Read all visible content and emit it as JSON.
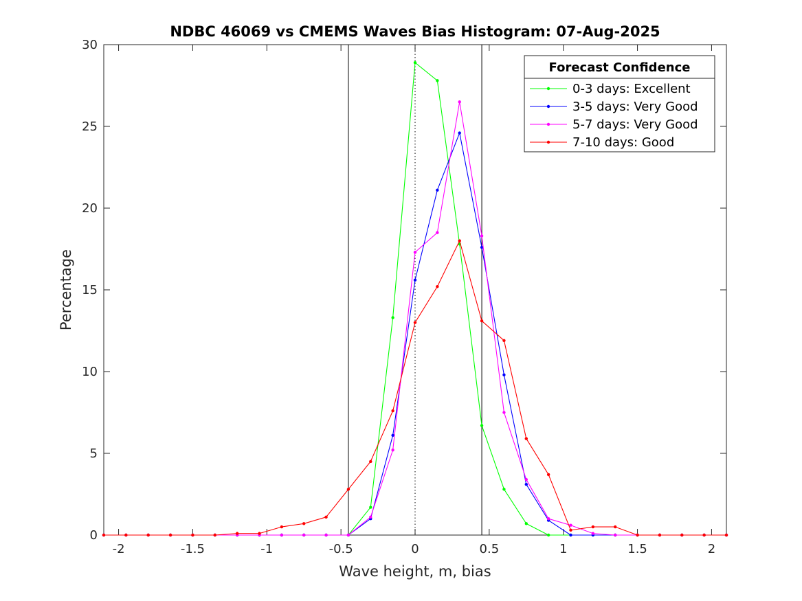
{
  "chart_data": {
    "type": "line",
    "title": "NDBC 46069 vs CMEMS Waves Bias Histogram: 07-Aug-2025",
    "xlabel": "Wave height, m, bias",
    "ylabel": "Percentage",
    "xlim": [
      -2.1,
      2.1
    ],
    "ylim": [
      0,
      30
    ],
    "xticks": [
      -2,
      -1.5,
      -1,
      -0.5,
      0,
      0.5,
      1,
      1.5,
      2
    ],
    "xtick_labels": [
      "-2",
      "-1.5",
      "-1",
      "-0.5",
      "0",
      "0.5",
      "1",
      "1.5",
      "2"
    ],
    "yticks": [
      0,
      5,
      10,
      15,
      20,
      25,
      30
    ],
    "ytick_labels": [
      "0",
      "5",
      "10",
      "15",
      "20",
      "25",
      "30"
    ],
    "grid": false,
    "vertical_lines": [
      {
        "x": -0.45,
        "style": "solid",
        "color": "#000000"
      },
      {
        "x": 0,
        "style": "dotted",
        "color": "#000000"
      },
      {
        "x": 0.45,
        "style": "solid",
        "color": "#000000"
      }
    ],
    "legend": {
      "title": "Forecast Confidence",
      "placement": "top-right"
    },
    "x": [
      -2.1,
      -1.95,
      -1.8,
      -1.65,
      -1.5,
      -1.35,
      -1.2,
      -1.05,
      -0.9,
      -0.75,
      -0.6,
      -0.45,
      -0.3,
      -0.15,
      0,
      0.15,
      0.3,
      0.45,
      0.6,
      0.75,
      0.9,
      1.05,
      1.2,
      1.35,
      1.5,
      1.65,
      1.8,
      1.95,
      2.1
    ],
    "series": [
      {
        "name": "0-3 days: Excellent",
        "color": "#00ff00",
        "values": [
          0,
          0,
          0,
          0,
          0,
          0,
          0,
          0,
          0,
          0,
          0,
          0,
          1.7,
          13.3,
          28.9,
          27.8,
          17.8,
          6.7,
          2.8,
          0.7,
          0,
          0,
          0,
          0,
          0,
          0,
          0,
          0,
          0
        ]
      },
      {
        "name": "3-5 days: Very Good",
        "color": "#0000ff",
        "values": [
          0,
          0,
          0,
          0,
          0,
          0,
          0,
          0,
          0,
          0,
          0,
          0,
          1.0,
          6.1,
          15.6,
          21.1,
          24.6,
          17.6,
          9.8,
          3.1,
          0.9,
          0,
          0,
          0,
          0,
          0,
          0,
          0,
          0
        ]
      },
      {
        "name": "5-7 days: Very Good",
        "color": "#ff00ff",
        "values": [
          0,
          0,
          0,
          0,
          0,
          0,
          0,
          0,
          0,
          0,
          0,
          0,
          1.1,
          5.2,
          17.3,
          18.5,
          26.5,
          18.3,
          7.5,
          3.4,
          1.0,
          0.6,
          0.1,
          0,
          0,
          0,
          0,
          0,
          0
        ]
      },
      {
        "name": "7-10 days: Good",
        "color": "#ff0000",
        "values": [
          0,
          0,
          0,
          0,
          0,
          0,
          0.1,
          0.1,
          0.5,
          0.7,
          1.1,
          2.8,
          4.5,
          7.6,
          13.0,
          15.2,
          18.0,
          13.1,
          11.9,
          5.9,
          3.7,
          0.3,
          0.5,
          0.5,
          0,
          0,
          0,
          0,
          0
        ]
      }
    ]
  }
}
